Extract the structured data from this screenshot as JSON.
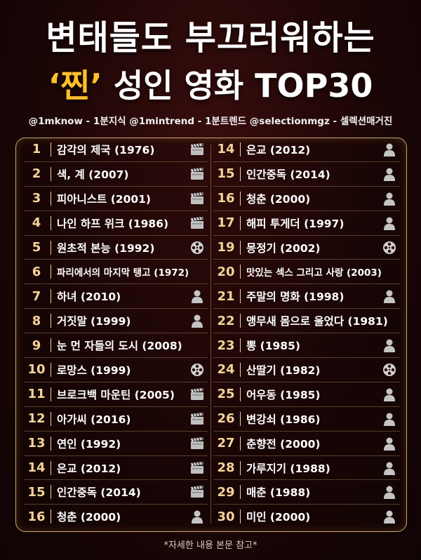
{
  "title_line1": "변태들도 부끄러워하는",
  "title_line2_highlight": "‘찐’",
  "title_line2_rest": "성인 영화 TOP30",
  "credits": "@1mknow - 1분지식 @1mintrend - 1분트렌드 @selectionmgz - 셀렉션매거진",
  "footnote": "*자세한 내용 본문 참고*",
  "accent_color": "#ffbf2e",
  "border_color": "#c8a76a",
  "left_list": [
    {
      "num": "1",
      "title": "감각의 제국 (1976)",
      "icon": "clapperboard-icon"
    },
    {
      "num": "2",
      "title": "색, 계 (2007)",
      "icon": "clapperboard-icon"
    },
    {
      "num": "3",
      "title": "피아니스트 (2001)",
      "icon": "clapperboard-icon"
    },
    {
      "num": "4",
      "title": "나인 하프 위크 (1986)",
      "icon": "clapperboard-icon"
    },
    {
      "num": "5",
      "title": "원초적 본능 (1992)",
      "icon": "film-reel-icon"
    },
    {
      "num": "6",
      "title": "파리에서의 마지막 탱고 (1972)",
      "icon": ""
    },
    {
      "num": "7",
      "title": "하녀 (2010)",
      "icon": "person-icon"
    },
    {
      "num": "8",
      "title": "거짓말 (1999)",
      "icon": "person-icon"
    },
    {
      "num": "9",
      "title": "눈 먼 자들의 도시 (2008)",
      "icon": ""
    },
    {
      "num": "10",
      "title": "로망스 (1999)",
      "icon": "film-reel-icon"
    },
    {
      "num": "11",
      "title": "브로크백 마운틴 (2005)",
      "icon": "clapperboard-icon"
    },
    {
      "num": "12",
      "title": "아가씨 (2016)",
      "icon": "clapperboard-icon"
    },
    {
      "num": "13",
      "title": "연인 (1992)",
      "icon": "clapperboard-icon"
    },
    {
      "num": "14",
      "title": "은교 (2012)",
      "icon": "clapperboard-icon"
    },
    {
      "num": "15",
      "title": "인간중독 (2014)",
      "icon": "clapperboard-icon"
    },
    {
      "num": "16",
      "title": "청춘 (2000)",
      "icon": "person-icon"
    }
  ],
  "right_list": [
    {
      "num": "14",
      "title": "은교 (2012)",
      "icon": "person-icon"
    },
    {
      "num": "15",
      "title": "인간중독 (2014)",
      "icon": "person-icon"
    },
    {
      "num": "16",
      "title": "청춘 (2000)",
      "icon": "person-icon"
    },
    {
      "num": "17",
      "title": "해피 투게더 (1997)",
      "icon": "person-icon"
    },
    {
      "num": "19",
      "title": "몽정기 (2002)",
      "icon": "film-reel-icon"
    },
    {
      "num": "20",
      "title": "맛있는 섹스 그리고 사랑 (2003)",
      "icon": ""
    },
    {
      "num": "21",
      "title": "주말의 명화 (1998)",
      "icon": "person-icon"
    },
    {
      "num": "22",
      "title": "앵무새 몸으로 울었다 (1981)",
      "icon": ""
    },
    {
      "num": "23",
      "title": "뽕 (1985)",
      "icon": "person-icon"
    },
    {
      "num": "24",
      "title": "산딸기 (1982)",
      "icon": "film-reel-icon"
    },
    {
      "num": "25",
      "title": "어우동 (1985)",
      "icon": "person-icon"
    },
    {
      "num": "26",
      "title": "변강쇠 (1986)",
      "icon": "person-icon"
    },
    {
      "num": "27",
      "title": "춘향전 (2000)",
      "icon": "person-icon"
    },
    {
      "num": "28",
      "title": "가루지기 (1988)",
      "icon": "person-icon"
    },
    {
      "num": "29",
      "title": "매춘 (1988)",
      "icon": "person-icon"
    },
    {
      "num": "30",
      "title": "미인 (2000)",
      "icon": "person-icon"
    }
  ]
}
